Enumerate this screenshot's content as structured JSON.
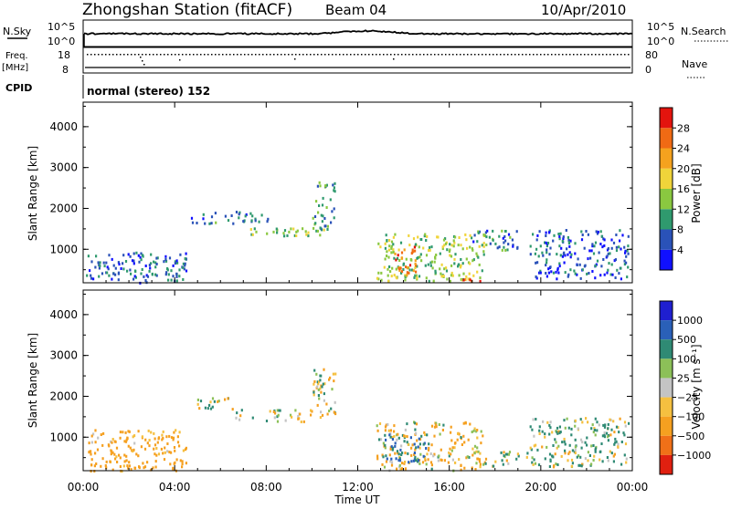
{
  "header": {
    "station": "Zhongshan Station (fitACF)",
    "beam": "Beam 04",
    "date": "10/Apr/2010"
  },
  "strip": {
    "nsky_label": "N.Sky",
    "nsearch_label": "N.Search",
    "freq_label_1": "Freq.",
    "freq_label_2": "[MHz]",
    "nave_label": "Nave",
    "cpid_label": "CPID",
    "cpid_text": "normal (stereo) 152",
    "nsky_ticks": [
      "10^5",
      "10^0"
    ],
    "nsearch_ticks": [
      "10^5",
      "10^0"
    ],
    "freq_ticks": [
      "18",
      "8"
    ],
    "nave_ticks": [
      "80",
      "0"
    ]
  },
  "colorbar_power": {
    "label": "Power [dB]",
    "ticks": [
      "28",
      "24",
      "20",
      "16",
      "12",
      "8",
      "4"
    ],
    "colors": [
      "#1010ff",
      "#2a52b8",
      "#2f9a6e",
      "#8ac840",
      "#f0d43a",
      "#f5a21e",
      "#f06a14",
      "#e3140e"
    ]
  },
  "colorbar_velocity": {
    "label": "Velocity [m s⁻¹]",
    "ticks": [
      "1000",
      "500",
      "100",
      "25",
      "−25",
      "−100",
      "−500",
      "−1000"
    ],
    "colors": [
      "#1f1fd0",
      "#2a60b8",
      "#2f8a74",
      "#8cc058",
      "#c4c4c4",
      "#f5c040",
      "#f5a020",
      "#f07018",
      "#e02010"
    ]
  },
  "axes": {
    "ylabel": "Slant Range [km]",
    "xlabel": "Time UT",
    "yticks": [
      "4000",
      "3000",
      "2000",
      "1000"
    ],
    "xticks": [
      "00:00",
      "04:00",
      "08:00",
      "12:00",
      "16:00",
      "20:00",
      "00:00"
    ]
  },
  "chart_data": [
    {
      "type": "heatmap",
      "title": "Power",
      "x_range_hours": [
        0,
        24
      ],
      "y_range_km": [
        180,
        4600
      ],
      "z_label": "Power [dB]",
      "z_range": [
        0,
        32
      ],
      "patches": [
        {
          "t": [
            0.1,
            4.5
          ],
          "r": [
            200,
            950
          ],
          "value": 7
        },
        {
          "t": [
            4.7,
            8.2
          ],
          "r": [
            1650,
            1950
          ],
          "value": 8
        },
        {
          "t": [
            7.2,
            10.5
          ],
          "r": [
            1350,
            1550
          ],
          "value": 14
        },
        {
          "t": [
            10.0,
            11.0
          ],
          "r": [
            1500,
            2700
          ],
          "value": 10
        },
        {
          "t": [
            12.8,
            17.5
          ],
          "r": [
            250,
            1400
          ],
          "value": 14
        },
        {
          "t": [
            13.5,
            14.5
          ],
          "r": [
            400,
            1100
          ],
          "value": 24
        },
        {
          "t": [
            16.5,
            17.5
          ],
          "r": [
            200,
            300
          ],
          "value": 28
        },
        {
          "t": [
            17.0,
            19.0
          ],
          "r": [
            1000,
            1500
          ],
          "value": 8
        },
        {
          "t": [
            19.5,
            23.8
          ],
          "r": [
            300,
            1500
          ],
          "value": 6
        }
      ]
    },
    {
      "type": "heatmap",
      "title": "Velocity",
      "x_range_hours": [
        0,
        24
      ],
      "y_range_km": [
        180,
        4600
      ],
      "z_label": "Velocity [m s⁻¹]",
      "z_range": [
        -1000,
        1000
      ],
      "patches": [
        {
          "t": [
            0.2,
            4.5
          ],
          "r": [
            200,
            1200
          ],
          "value": -250
        },
        {
          "t": [
            4.9,
            6.5
          ],
          "r": [
            1700,
            2000
          ],
          "value": 0
        },
        {
          "t": [
            6.5,
            10.0
          ],
          "r": [
            1400,
            1700
          ],
          "value": 0
        },
        {
          "t": [
            10.0,
            11.0
          ],
          "r": [
            1500,
            2700
          ],
          "value": 0
        },
        {
          "t": [
            12.8,
            17.5
          ],
          "r": [
            200,
            1400
          ],
          "value": -120
        },
        {
          "t": [
            13.0,
            15.0
          ],
          "r": [
            400,
            1100
          ],
          "value": 500
        },
        {
          "t": [
            17.5,
            19.5
          ],
          "r": [
            300,
            700
          ],
          "value": 100
        },
        {
          "t": [
            19.5,
            23.8
          ],
          "r": [
            300,
            1500
          ],
          "value": 100
        }
      ]
    }
  ]
}
